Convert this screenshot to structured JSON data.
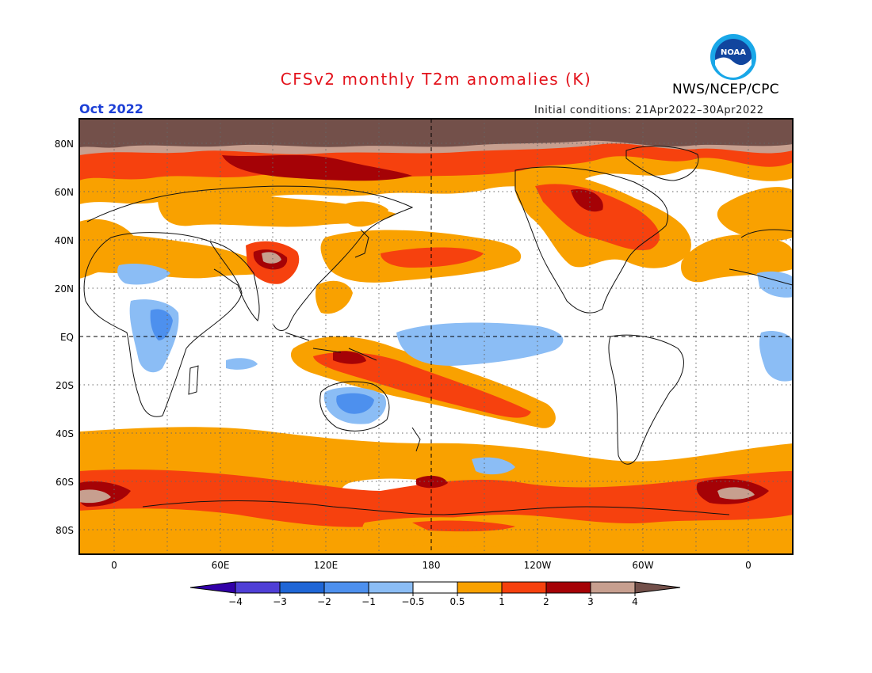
{
  "title": "CFSv2 monthly T2m anomalies (K)",
  "agency": "NWS/NCEP/CPC",
  "logo_text": "NOAA",
  "valid_month": "Oct 2022",
  "initial_conditions": "Initial conditions: 21Apr2022–30Apr2022",
  "map": {
    "projection": "cylindrical equidistant, centered on 180",
    "lat_labels": [
      "80N",
      "60N",
      "40N",
      "20N",
      "EQ",
      "20S",
      "40S",
      "60S",
      "80S"
    ],
    "lon_labels": [
      "0",
      "60E",
      "120E",
      "180",
      "120W",
      "60W",
      "0"
    ],
    "grid": "dotted, 20° lat / 30° lon",
    "reference_lines": [
      "EQ",
      "180"
    ]
  },
  "legend": {
    "type": "colorbar",
    "tick_labels": [
      "−4",
      "−3",
      "−2",
      "−1",
      "−0.5",
      "0.5",
      "1",
      "2",
      "3",
      "4"
    ],
    "colors": [
      "#3200a8",
      "#4f3fd6",
      "#1f66d6",
      "#4d90ee",
      "#8bbdf5",
      "#ffffff",
      "#f9a100",
      "#f6410e",
      "#a50206",
      "#c79f8f",
      "#73504a"
    ]
  },
  "colors": {
    "title": "#e3121b",
    "month": "#1c3fd6",
    "pos_05_1": "#f9a100",
    "pos_1_2": "#f6410e",
    "pos_2_3": "#a50206",
    "pos_3_4": "#c79f8f",
    "pos_gt4": "#73504a",
    "neg_05_1": "#8bbdf5",
    "neg_1_2": "#4d90ee",
    "neg_2_3": "#1f66d6"
  }
}
